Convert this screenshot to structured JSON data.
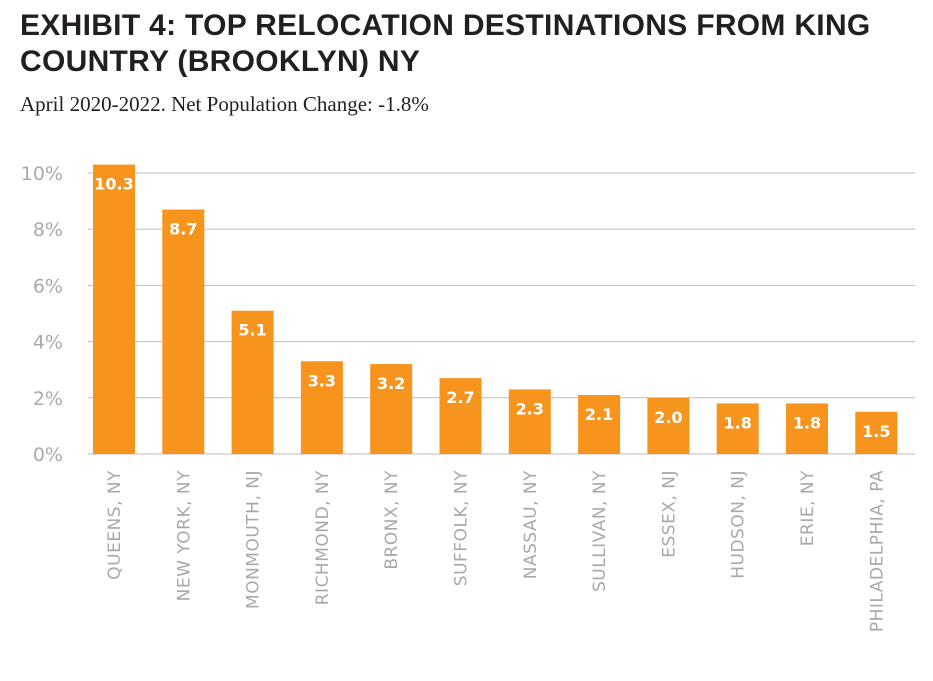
{
  "title": "EXHIBIT 4: TOP RELOCATION DESTINATIONS FROM KING COUNTRY (BROOKLYN) NY",
  "subtitle": "April 2020-2022. Net Population Change: -1.8%",
  "colors": {
    "bar": "#f7941d",
    "grid": "#bcbec0",
    "axis_text": "#a7a9ac"
  },
  "chart_data": {
    "type": "bar",
    "title": "EXHIBIT 4: TOP RELOCATION DESTINATIONS FROM KING COUNTRY (BROOKLYN) NY",
    "subtitle": "April 2020-2022. Net Population Change: -1.8%",
    "categories": [
      "QUEENS, NY",
      "NEW YORK, NY",
      "MONMOUTH, NJ",
      "RICHMOND, NY",
      "BRONX, NY",
      "SUFFOLK, NY",
      "NASSAU, NY",
      "SULLIVAN, NY",
      "ESSEX, NJ",
      "HUDSON, NJ",
      "ERIE, NY",
      "PHILADELPHIA, PA"
    ],
    "values": [
      10.3,
      8.7,
      5.1,
      3.3,
      3.2,
      2.7,
      2.3,
      2.1,
      2.0,
      1.8,
      1.8,
      1.5
    ],
    "data_labels": [
      "10.3",
      "8.7",
      "5.1",
      "3.3",
      "3.2",
      "2.7",
      "2.3",
      "2.1",
      "2.0",
      "1.8",
      "1.8",
      "1.5"
    ],
    "yticks": [
      0,
      2,
      4,
      6,
      8,
      10
    ],
    "ytick_labels": [
      "0%",
      "2%",
      "4%",
      "6%",
      "8%",
      "10%"
    ],
    "ylim": [
      0,
      10
    ],
    "grid": true,
    "xlabel": "",
    "ylabel": ""
  }
}
